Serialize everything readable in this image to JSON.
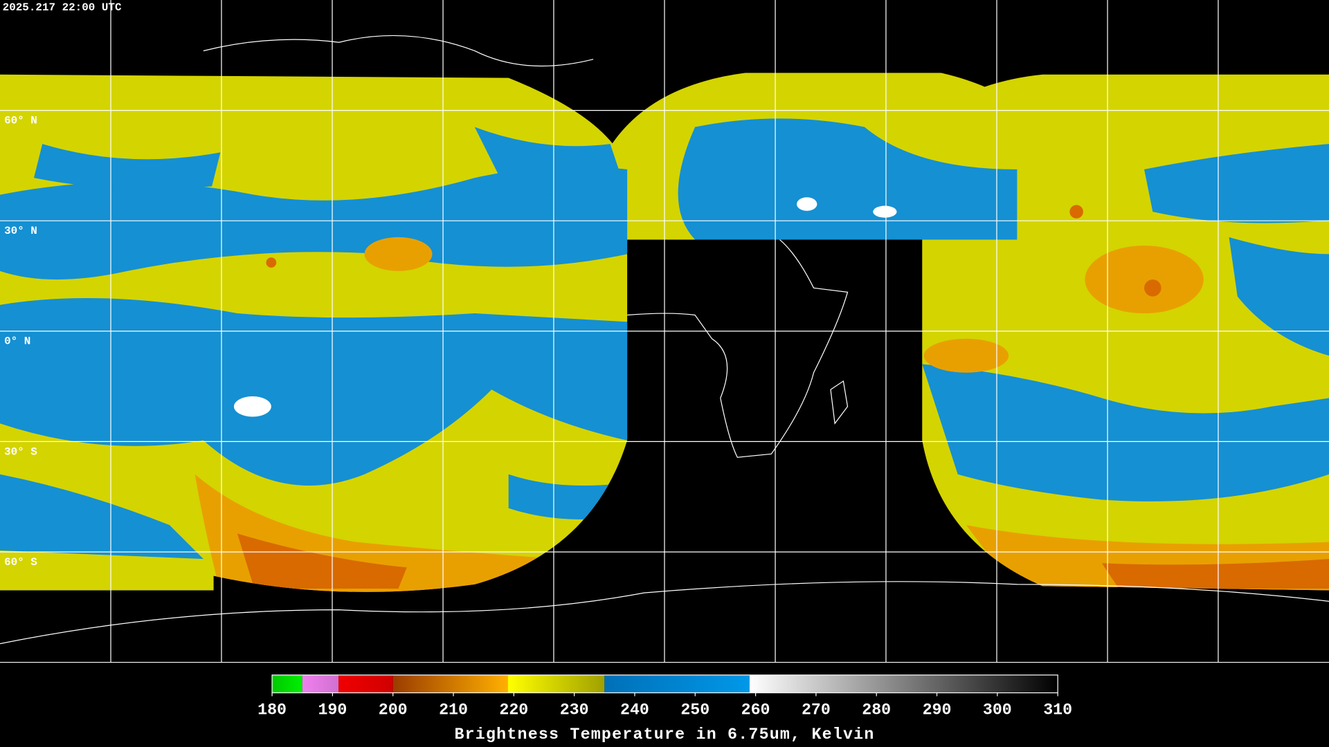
{
  "timestamp": "2025.217 22:00 UTC",
  "latitudes": [
    {
      "value": 60,
      "label": "60° N"
    },
    {
      "value": 30,
      "label": "30° N"
    },
    {
      "value": 0,
      "label": "0° N"
    },
    {
      "value": -30,
      "label": "30° S"
    },
    {
      "value": -60,
      "label": "60° S"
    }
  ],
  "colorbar": {
    "title": "Brightness Temperature in 6.75um, Kelvin",
    "range": [
      180,
      310
    ],
    "ticks": [
      180,
      190,
      200,
      210,
      220,
      230,
      240,
      250,
      260,
      270,
      280,
      290,
      300,
      310
    ],
    "colormap": [
      {
        "from": 180,
        "to": 185,
        "colors": [
          "#00c800",
          "#00f000"
        ]
      },
      {
        "from": 185,
        "to": 191,
        "colors": [
          "#f080f0",
          "#d070d0"
        ]
      },
      {
        "from": 191,
        "to": 200,
        "colors": [
          "#f00000",
          "#d00000"
        ]
      },
      {
        "from": 200,
        "to": 219,
        "colors": [
          "#9a3c00",
          "#ffb000"
        ]
      },
      {
        "from": 219,
        "to": 235,
        "colors": [
          "#ffff00",
          "#a0a000"
        ]
      },
      {
        "from": 235,
        "to": 259,
        "colors": [
          "#0070b8",
          "#0098e8"
        ]
      },
      {
        "from": 259,
        "to": 310,
        "colors": [
          "#ffffff",
          "#000000"
        ]
      }
    ]
  }
}
